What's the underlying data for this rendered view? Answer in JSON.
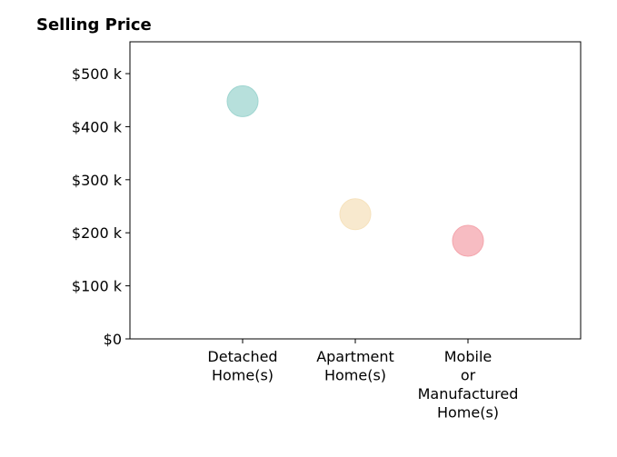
{
  "chart_data": {
    "type": "scatter",
    "title": "Selling Price",
    "xlabel": "",
    "ylabel": "",
    "categories": [
      [
        "Detached",
        "Home(s)"
      ],
      [
        "Apartment",
        "Home(s)"
      ],
      [
        "Mobile",
        "or",
        "Manufactured",
        "Home(s)"
      ]
    ],
    "values": [
      448000,
      235000,
      185000
    ],
    "colors": [
      "#9fd5d0",
      "#f6e2bd",
      "#f4a6ad"
    ],
    "ylim": [
      0,
      560000
    ],
    "yticks": [
      0,
      100000,
      200000,
      300000,
      400000,
      500000
    ],
    "ytick_labels": [
      "$0",
      "$100 k",
      "$200 k",
      "$300 k",
      "$400 k",
      "$500 k"
    ],
    "grid": false,
    "legend": "none"
  }
}
